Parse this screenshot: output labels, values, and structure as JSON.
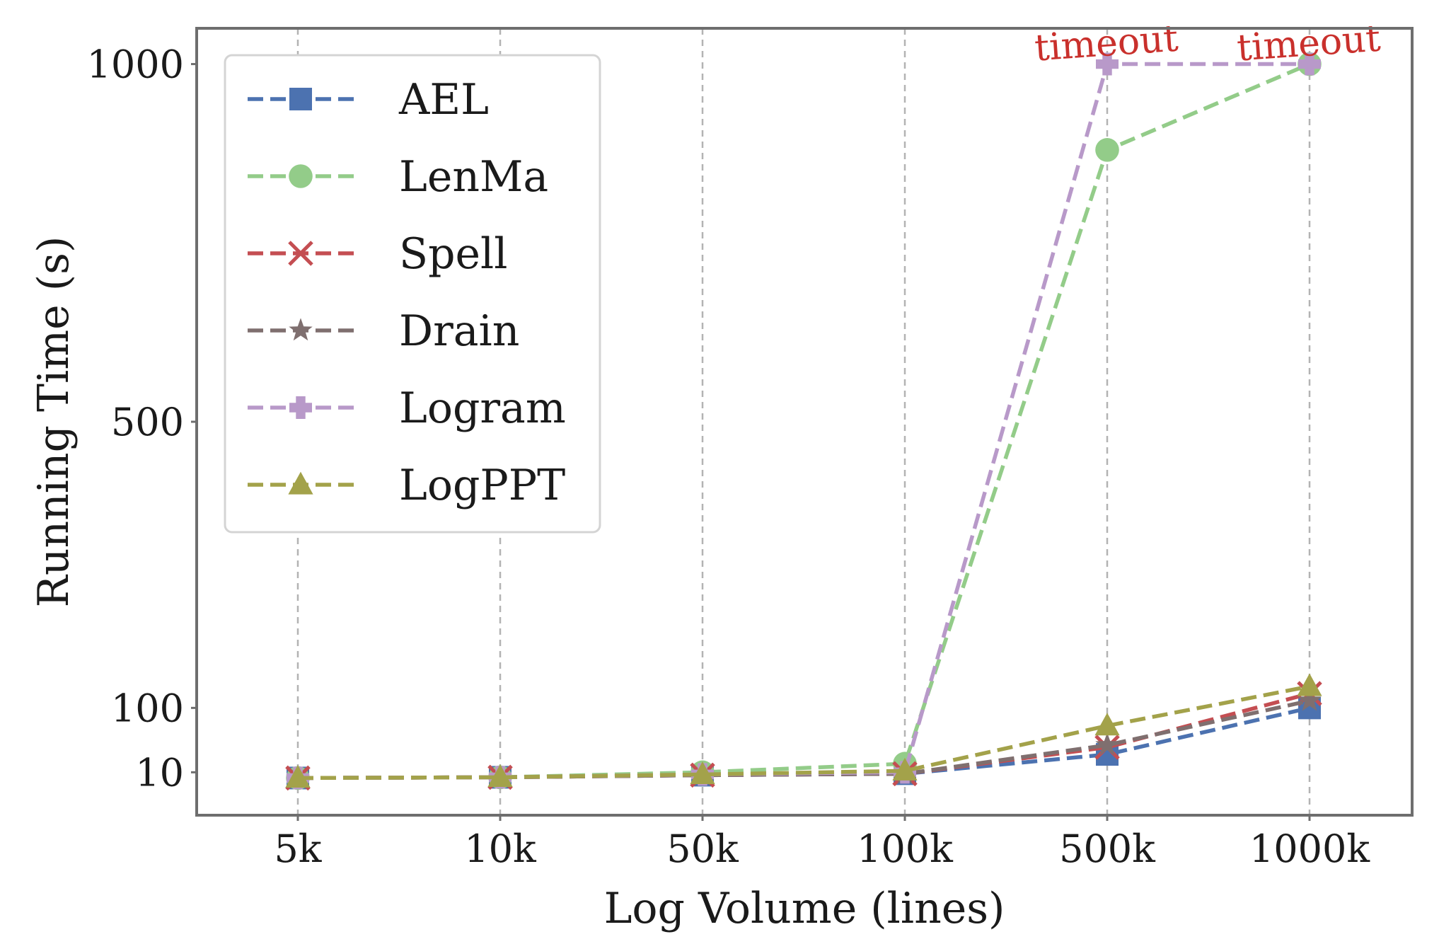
{
  "chart_data": {
    "type": "line",
    "title": "",
    "xlabel": "Log Volume (lines)",
    "ylabel": "Running Time (s)",
    "categories": [
      "5k",
      "10k",
      "50k",
      "100k",
      "500k",
      "1000k"
    ],
    "yticks": [
      10,
      100,
      500,
      1000
    ],
    "ylim": [
      -50,
      1050
    ],
    "grid": "x-dashed",
    "legend_position": "top-left",
    "series": [
      {
        "name": "AEL",
        "color": "#4c72b0",
        "marker": "square",
        "values": [
          2,
          3,
          6,
          8,
          35,
          100
        ]
      },
      {
        "name": "LenMa",
        "color": "#93cc89",
        "marker": "circle",
        "values": [
          2,
          3,
          10,
          22,
          880,
          1000
        ]
      },
      {
        "name": "Spell",
        "color": "#c44e52",
        "marker": "x",
        "values": [
          2,
          3,
          6,
          8,
          45,
          120
        ]
      },
      {
        "name": "Drain",
        "color": "#7f6f6f",
        "marker": "star",
        "values": [
          2,
          3,
          6,
          8,
          48,
          110
        ]
      },
      {
        "name": "Logram",
        "color": "#b899c9",
        "marker": "plus",
        "values": [
          2,
          3,
          7,
          10,
          1000,
          1000
        ]
      },
      {
        "name": "LogPPT",
        "color": "#a3a24a",
        "marker": "triangle",
        "values": [
          2,
          3,
          7,
          12,
          75,
          130
        ]
      }
    ],
    "annotations": [
      {
        "text": "timeout",
        "category": "500k",
        "value": 1000,
        "color": "#c9302c"
      },
      {
        "text": "timeout",
        "category": "1000k",
        "value": 1000,
        "color": "#c9302c"
      }
    ]
  }
}
